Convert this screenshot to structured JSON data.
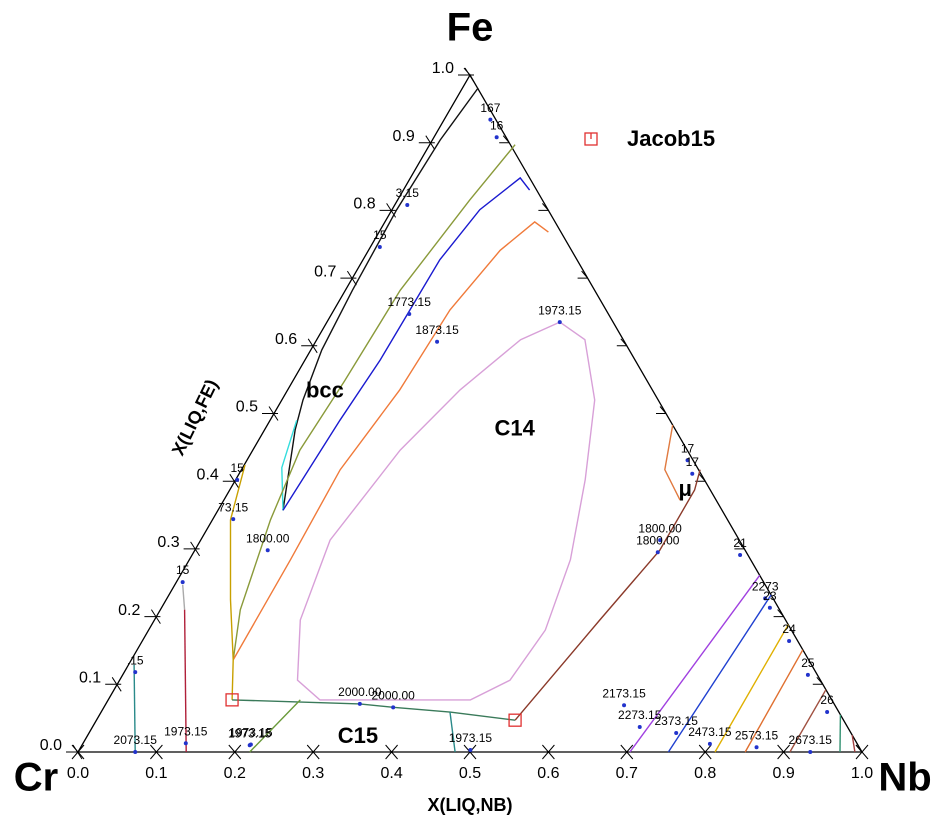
{
  "chart_data": {
    "type": "ternary",
    "corners": {
      "top": "Fe",
      "left": "Cr",
      "right": "Nb"
    },
    "xlabel": "X(LIQ,NB)",
    "ylabel": "X(LIQ,FE)",
    "xlim": [
      0,
      1
    ],
    "ylim": [
      0,
      1
    ],
    "xticks": [
      {
        "value": 0,
        "label": "0.0"
      },
      0.1,
      0.2,
      0.3,
      0.4,
      0.5,
      0.6,
      0.7,
      0.8,
      0.9,
      {
        "value": 1,
        "label": "1.0"
      }
    ],
    "yticks": [
      {
        "value": 0,
        "label": "0.0"
      },
      0.1,
      0.2,
      0.3,
      0.4,
      0.5,
      0.6,
      0.7,
      0.8,
      0.9,
      {
        "value": 1,
        "label": "1.0"
      }
    ],
    "series": [
      {
        "color": "#111111",
        "x": [
          0.02,
          0.01,
          0.006,
          0.009,
          0.014,
          0.027,
          0.039,
          0.083
        ],
        "y": [
          0.981,
          0.904,
          0.801,
          0.682,
          0.594,
          0.52,
          0.476,
          0.357
        ]
      },
      {
        "color": "#33dddd",
        "x": [
          0.034,
          0.05,
          0.083
        ],
        "y": [
          0.49,
          0.42,
          0.357
        ]
      },
      {
        "color": "#8a9a3a",
        "x": [
          0.109,
          0.092,
          0.07,
          0.066,
          0.06,
          0.074,
          0.102,
          0.13
        ],
        "y": [
          0.897,
          0.815,
          0.682,
          0.549,
          0.446,
          0.343,
          0.21,
          0.136
        ]
      },
      {
        "color": "#1a1ad0",
        "x": [
          0.161,
          0.14,
          0.112,
          0.098,
          0.097,
          0.096,
          0.089,
          0.083
        ],
        "y": [
          0.83,
          0.848,
          0.801,
          0.727,
          0.653,
          0.579,
          0.49,
          0.357
        ]
      },
      {
        "color": "#f07a3a",
        "x": [
          0.216,
          0.191,
          0.168,
          0.148,
          0.143,
          0.126,
          0.129,
          0.13
        ],
        "y": [
          0.768,
          0.783,
          0.741,
          0.653,
          0.535,
          0.417,
          0.284,
          0.136
        ]
      },
      {
        "color": "#c8a000",
        "x": [
          0.001,
          0.023,
          0.082,
          0.13,
          0.158
        ],
        "y": [
          0.424,
          0.343,
          0.225,
          0.136,
          0.077
        ]
      },
      {
        "color": "#aaaaaa",
        "x": [
          0.01,
          0.031
        ],
        "y": [
          0.247,
          0.21
        ]
      },
      {
        "color": "#b0203a",
        "x": [
          0.031,
          0.138
        ],
        "y": [
          0.21,
          0.0
        ]
      },
      {
        "color": "#2a8a8a",
        "x": [
          0.007,
          0.073
        ],
        "y": [
          0.129,
          0.0
        ]
      },
      {
        "color": "#d8a0d8",
        "x": [
          0.297,
          0.342,
          0.399,
          0.446,
          0.486,
          0.506,
          0.498,
          0.462,
          0.372,
          0.27,
          0.227,
          0.186,
          0.165,
          0.188,
          0.22,
          0.26,
          0.297
        ],
        "y": [
          0.635,
          0.609,
          0.52,
          0.402,
          0.284,
          0.18,
          0.106,
          0.077,
          0.077,
          0.077,
          0.106,
          0.195,
          0.313,
          0.446,
          0.535,
          0.609,
          0.635
        ]
      },
      {
        "color": "#3a7a5a",
        "x": [
          0.158,
          0.324,
          0.369,
          0.445,
          0.534
        ],
        "y": [
          0.077,
          0.071,
          0.066,
          0.059,
          0.047
        ]
      },
      {
        "color": "#6a9a3a",
        "x": [
          0.245,
          0.219
        ],
        "y": [
          0.077,
          0.0
        ]
      },
      {
        "color": "#2a8a8a",
        "x": [
          0.445,
          0.481
        ],
        "y": [
          0.059,
          0.0
        ]
      },
      {
        "color": "#8b3a2a",
        "x": [
          0.534,
          0.568,
          0.593,
          0.593,
          0.585
        ],
        "y": [
          0.047,
          0.195,
          0.298,
          0.387,
          0.417
        ]
      },
      {
        "color": "#e07a40",
        "x": [
          0.517,
          0.54,
          0.582
        ],
        "y": [
          0.483,
          0.417,
          0.372
        ]
      },
      {
        "color": "#a040e0",
        "x": [
          0.739,
          0.704
        ],
        "y": [
          0.261,
          0.0
        ]
      },
      {
        "color": "#2040d0",
        "x": [
          0.768,
          0.753
        ],
        "y": [
          0.232,
          0.0
        ]
      },
      {
        "color": "#e0b000",
        "x": [
          0.812,
          0.8125
        ],
        "y": [
          0.188,
          0.0
        ]
      },
      {
        "color": "#e07030",
        "x": [
          0.849,
          0.851
        ],
        "y": [
          0.151,
          0.0
        ]
      },
      {
        "color": "#a05040",
        "x": [
          0.908,
          0.908
        ],
        "y": [
          0.092,
          0.0
        ]
      },
      {
        "color": "#309070",
        "x": [
          0.945,
          0.972
        ],
        "y": [
          0.055,
          0.0
        ]
      },
      {
        "color": "#a04040",
        "x": [
          0.975,
          0.991
        ],
        "y": [
          0.025,
          0.0
        ]
      }
    ],
    "points": {
      "name": "Jacob15",
      "color": "#e03030",
      "x": [
        0.158,
        0.534
      ],
      "y": [
        0.077,
        0.047
      ]
    },
    "legend": "upper right",
    "phases": [
      {
        "text": "bcc",
        "x": 0.049,
        "y": 0.532
      },
      {
        "text": "C14",
        "x": 0.319,
        "y": 0.476
      },
      {
        "text": "C15",
        "x": 0.346,
        "y": 0.022
      },
      {
        "text": "μ",
        "x": 0.581,
        "y": 0.387
      }
    ],
    "annotations": [
      {
        "text": "167",
        "x": 0.059,
        "y": 0.934
      },
      {
        "text": "16",
        "x": 0.08,
        "y": 0.908
      },
      {
        "text": "3.15",
        "x": 0.016,
        "y": 0.808
      },
      {
        "text": "15",
        "x": 0.012,
        "y": 0.746
      },
      {
        "text": "1773.15",
        "x": 0.099,
        "y": 0.647
      },
      {
        "text": "1873.15",
        "x": 0.155,
        "y": 0.606
      },
      {
        "text": "1973.15",
        "x": 0.297,
        "y": 0.635
      },
      {
        "text": "15",
        "x": 0.002,
        "y": 0.402
      },
      {
        "text": "73.15",
        "x": 0.026,
        "y": 0.344
      },
      {
        "text": "1800.00",
        "x": 0.093,
        "y": 0.298
      },
      {
        "text": "15",
        "x": 0.008,
        "y": 0.251
      },
      {
        "text": ".15",
        "x": 0.014,
        "y": 0.118
      },
      {
        "text": "2073.15",
        "x": 0.073,
        "y": 0.0
      },
      {
        "text": "1973.15",
        "x": 0.131,
        "y": 0.013
      },
      {
        "text": "1973.15",
        "x": 0.214,
        "y": 0.01
      },
      {
        "text": "1973.15",
        "x": 0.215,
        "y": 0.011
      },
      {
        "text": "2000.00",
        "x": 0.324,
        "y": 0.071
      },
      {
        "text": "2000.00",
        "x": 0.369,
        "y": 0.066
      },
      {
        "text": "1973.15",
        "x": 0.499,
        "y": 0.003
      },
      {
        "text": "1800.00",
        "x": 0.586,
        "y": 0.313
      },
      {
        "text": "1800.00",
        "x": 0.592,
        "y": 0.295
      },
      {
        "text": "17",
        "x": 0.562,
        "y": 0.431
      },
      {
        "text": "17",
        "x": 0.578,
        "y": 0.411
      },
      {
        "text": "21",
        "x": 0.699,
        "y": 0.291
      },
      {
        "text": "2273",
        "x": 0.763,
        "y": 0.227
      },
      {
        "text": "23",
        "x": 0.776,
        "y": 0.213
      },
      {
        "text": "24",
        "x": 0.825,
        "y": 0.164
      },
      {
        "text": "25",
        "x": 0.874,
        "y": 0.114
      },
      {
        "text": "26",
        "x": 0.926,
        "y": 0.059
      },
      {
        "text": "2173.15",
        "x": 0.662,
        "y": 0.069
      },
      {
        "text": "2273.15",
        "x": 0.698,
        "y": 0.037
      },
      {
        "text": "2373.15",
        "x": 0.749,
        "y": 0.028
      },
      {
        "text": "2473.15",
        "x": 0.8,
        "y": 0.012
      },
      {
        "text": "2573.15",
        "x": 0.862,
        "y": 0.007
      },
      {
        "text": "2673.15",
        "x": 0.934,
        "y": 0.0
      }
    ]
  }
}
